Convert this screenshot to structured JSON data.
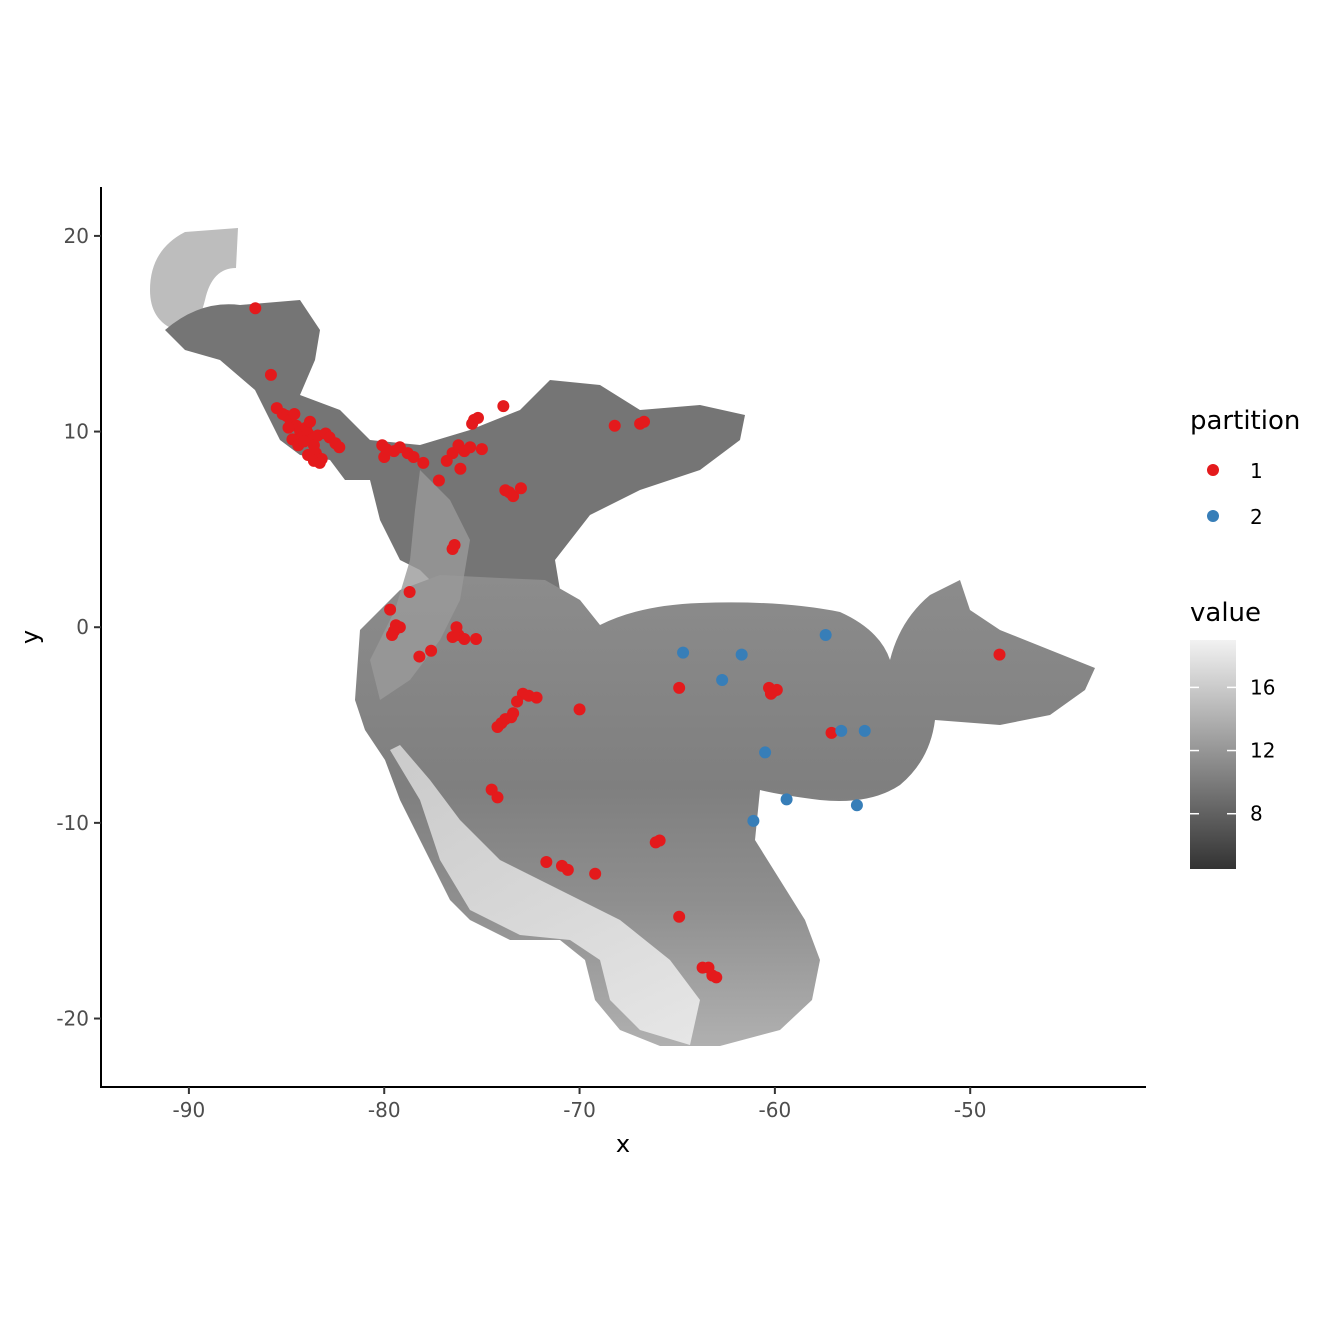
{
  "chart_data": {
    "type": "scatter",
    "xlabel": "x",
    "ylabel": "y",
    "xlim": [
      -94.5,
      -41
    ],
    "ylim": [
      -23.5,
      22.5
    ],
    "x_ticks": [
      -90,
      -80,
      -70,
      -60,
      -50
    ],
    "y_ticks": [
      -20,
      -10,
      0,
      10,
      20
    ],
    "x_tick_labels": [
      "-90",
      "-80",
      "-70",
      "-60",
      "-50"
    ],
    "y_tick_labels": [
      "-20",
      "-10",
      "0",
      "10",
      "20"
    ],
    "grid": false,
    "background_raster": "grayscale elevation-like raster covering Central and northern South America",
    "legend_partition": {
      "title": "partition",
      "entries": [
        {
          "label": "1",
          "color": "#e41a1c"
        },
        {
          "label": "2",
          "color": "#377eb8"
        }
      ]
    },
    "legend_value": {
      "title": "value",
      "tick_labels": [
        "16",
        "12",
        "8"
      ],
      "ticks": [
        16,
        12,
        8
      ],
      "range": [
        4.5,
        19
      ],
      "colors": [
        "#333333",
        "#f2f2f2"
      ]
    },
    "series": [
      {
        "name": "1",
        "color": "#e41a1c",
        "points": [
          [
            -86.6,
            16.3
          ],
          [
            -85.8,
            12.9
          ],
          [
            -85.5,
            11.2
          ],
          [
            -85.2,
            10.9
          ],
          [
            -85.0,
            10.8
          ],
          [
            -84.8,
            10.6
          ],
          [
            -84.6,
            10.9
          ],
          [
            -84.5,
            10.3
          ],
          [
            -84.3,
            10.0
          ],
          [
            -84.2,
            9.7
          ],
          [
            -84.0,
            10.2
          ],
          [
            -83.9,
            9.9
          ],
          [
            -83.8,
            10.5
          ],
          [
            -83.7,
            9.6
          ],
          [
            -83.6,
            9.3
          ],
          [
            -83.5,
            8.9
          ],
          [
            -83.4,
            9.8
          ],
          [
            -83.2,
            8.6
          ],
          [
            -83.0,
            9.9
          ],
          [
            -82.8,
            9.7
          ],
          [
            -82.5,
            9.4
          ],
          [
            -82.3,
            9.2
          ],
          [
            -84.9,
            10.2
          ],
          [
            -84.7,
            9.6
          ],
          [
            -84.4,
            9.3
          ],
          [
            -84.1,
            9.5
          ],
          [
            -83.9,
            8.8
          ],
          [
            -83.6,
            8.5
          ],
          [
            -83.3,
            8.4
          ],
          [
            -80.1,
            9.3
          ],
          [
            -79.9,
            9.1
          ],
          [
            -80.0,
            8.7
          ],
          [
            -79.5,
            9.0
          ],
          [
            -79.2,
            9.2
          ],
          [
            -78.8,
            8.9
          ],
          [
            -78.5,
            8.7
          ],
          [
            -78.0,
            8.4
          ],
          [
            -77.2,
            7.5
          ],
          [
            -76.8,
            8.5
          ],
          [
            -76.5,
            8.9
          ],
          [
            -76.2,
            9.3
          ],
          [
            -75.9,
            9.0
          ],
          [
            -75.6,
            9.2
          ],
          [
            -76.1,
            8.1
          ],
          [
            -75.0,
            9.1
          ],
          [
            -75.5,
            10.4
          ],
          [
            -75.4,
            10.6
          ],
          [
            -75.2,
            10.7
          ],
          [
            -73.9,
            11.3
          ],
          [
            -73.8,
            7.0
          ],
          [
            -73.6,
            6.9
          ],
          [
            -73.4,
            6.7
          ],
          [
            -73.0,
            7.1
          ],
          [
            -68.2,
            10.3
          ],
          [
            -66.9,
            10.4
          ],
          [
            -66.7,
            10.5
          ],
          [
            -76.5,
            4.0
          ],
          [
            -76.4,
            4.2
          ],
          [
            -78.7,
            1.8
          ],
          [
            -79.7,
            0.9
          ],
          [
            -79.4,
            0.1
          ],
          [
            -79.2,
            0.0
          ],
          [
            -79.6,
            -0.4
          ],
          [
            -79.5,
            -0.2
          ],
          [
            -78.2,
            -1.5
          ],
          [
            -77.6,
            -1.2
          ],
          [
            -76.5,
            -0.5
          ],
          [
            -76.2,
            -0.4
          ],
          [
            -75.9,
            -0.6
          ],
          [
            -76.3,
            0.0
          ],
          [
            -75.3,
            -0.6
          ],
          [
            -72.9,
            -3.4
          ],
          [
            -72.6,
            -3.5
          ],
          [
            -72.2,
            -3.6
          ],
          [
            -73.2,
            -3.8
          ],
          [
            -73.5,
            -4.6
          ],
          [
            -73.8,
            -4.7
          ],
          [
            -74.0,
            -4.9
          ],
          [
            -74.2,
            -5.1
          ],
          [
            -73.4,
            -4.4
          ],
          [
            -70.0,
            -4.2
          ],
          [
            -74.5,
            -8.3
          ],
          [
            -74.2,
            -8.7
          ],
          [
            -71.7,
            -12.0
          ],
          [
            -70.9,
            -12.2
          ],
          [
            -70.6,
            -12.4
          ],
          [
            -69.2,
            -12.6
          ],
          [
            -66.1,
            -11.0
          ],
          [
            -65.9,
            -10.9
          ],
          [
            -64.9,
            -14.8
          ],
          [
            -63.7,
            -17.4
          ],
          [
            -63.4,
            -17.4
          ],
          [
            -63.2,
            -17.8
          ],
          [
            -63.0,
            -17.9
          ],
          [
            -64.9,
            -3.1
          ],
          [
            -60.3,
            -3.1
          ],
          [
            -60.1,
            -3.3
          ],
          [
            -59.9,
            -3.2
          ],
          [
            -60.2,
            -3.4
          ],
          [
            -57.1,
            -5.4
          ],
          [
            -48.5,
            -1.4
          ]
        ]
      },
      {
        "name": "2",
        "color": "#377eb8",
        "points": [
          [
            -64.7,
            -1.3
          ],
          [
            -61.7,
            -1.4
          ],
          [
            -57.4,
            -0.4
          ],
          [
            -62.7,
            -2.7
          ],
          [
            -56.6,
            -5.3
          ],
          [
            -55.4,
            -5.3
          ],
          [
            -60.5,
            -6.4
          ],
          [
            -59.4,
            -8.8
          ],
          [
            -55.8,
            -9.1
          ],
          [
            -61.1,
            -9.9
          ]
        ]
      }
    ]
  }
}
